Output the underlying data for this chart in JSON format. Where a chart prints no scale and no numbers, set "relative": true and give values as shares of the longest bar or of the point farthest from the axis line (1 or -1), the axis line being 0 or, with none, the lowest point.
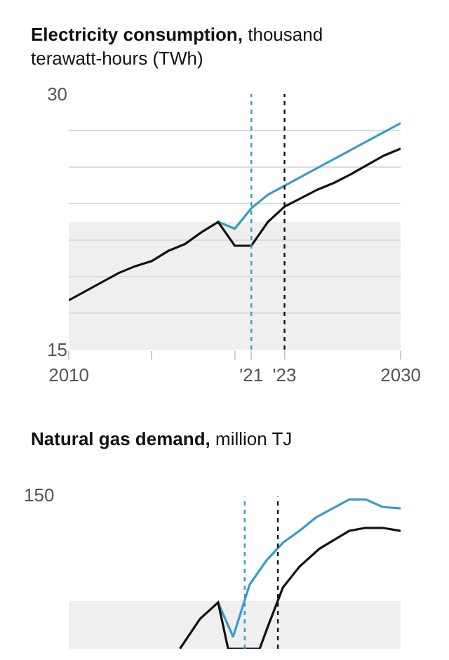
{
  "chart_data": [
    {
      "type": "line",
      "title": "Electricity consumption, thousand terawatt-hours (TWh)",
      "x": [
        2010,
        2013,
        2014,
        2015,
        2016,
        2017,
        2018,
        2019,
        2020,
        2021,
        2022,
        2023,
        2025,
        2026,
        2027,
        2029,
        2030
      ],
      "series": [
        {
          "color": "#3a9cc4",
          "x": [
            2019,
            2020,
            2021,
            2022,
            2030
          ],
          "values": [
            22.5,
            22.1,
            23.3,
            24.1,
            28.3
          ]
        },
        {
          "color": "#111111",
          "values": [
            17.9,
            19.5,
            19.9,
            20.2,
            20.8,
            21.2,
            21.9,
            22.5,
            21.1,
            21.1,
            22.5,
            23.4,
            24.4,
            24.8,
            25.3,
            26.4,
            26.8
          ]
        }
      ],
      "xlim": [
        2010,
        2030
      ],
      "xticks": [
        2010,
        {
          "value": 2015,
          "label": null
        },
        {
          "value": 2020,
          "label": null
        },
        {
          "value": 2021,
          "label": "'21"
        },
        {
          "value": 2023,
          "label": "'23"
        },
        2030
      ],
      "ylim": [
        15,
        30
      ],
      "yticks": [
        15,
        {
          "value": 17.14,
          "label": null
        },
        {
          "value": 19.29,
          "label": null
        },
        {
          "value": 21.43,
          "label": null
        },
        {
          "value": 23.57,
          "label": null
        },
        {
          "value": 25.71,
          "label": null
        },
        {
          "value": 27.86,
          "label": null
        },
        30
      ],
      "grid": "y",
      "bands": [
        {
          "axis": "y",
          "from": 15,
          "to": 22.5,
          "color": "#efefef"
        }
      ],
      "ref_lines": [
        {
          "axis": "x",
          "value": 2021,
          "color": "#3a9cc4",
          "line_style": "dotted"
        },
        {
          "axis": "x",
          "value": 2023,
          "color": "#111111",
          "line_style": "dotted"
        }
      ]
    },
    {
      "type": "line",
      "title": "Natural gas demand, million TJ",
      "relative": true,
      "annotations": [
        "150"
      ],
      "series": [
        {
          "color": "#3a9cc4",
          "x": [
            2019,
            2019.9,
            2020.9,
            2021.9,
            2022.9,
            2023.9,
            2024.9,
            2025.9,
            2026.9,
            2027.9,
            2028.9,
            2030
          ],
          "values": [
            0.31,
            0.08,
            0.43,
            0.59,
            0.71,
            0.79,
            0.88,
            0.94,
            1.0,
            1.0,
            0.95,
            0.94
          ]
        },
        {
          "color": "#111111",
          "x": [
            2016.7,
            2017.9,
            2019,
            2019.6,
            2021.5,
            2022,
            2022.9,
            2023.9,
            2025.1,
            2026.9,
            2027.9,
            2028.9,
            2030
          ],
          "values": [
            0,
            0.2,
            0.31,
            0,
            0,
            0.15,
            0.41,
            0.55,
            0.67,
            0.79,
            0.81,
            0.81,
            0.79
          ]
        }
      ],
      "xlim": [
        2010,
        2030
      ],
      "bands": [
        {
          "axis": "y",
          "from": 0,
          "to": 0.32,
          "color": "#efefef"
        }
      ],
      "ref_lines": [
        {
          "axis": "x",
          "value": 2020.6,
          "color": "#3a9cc4",
          "line_style": "dotted"
        },
        {
          "axis": "x",
          "value": 2022.6,
          "color": "#111111",
          "line_style": "dotted"
        }
      ]
    }
  ]
}
